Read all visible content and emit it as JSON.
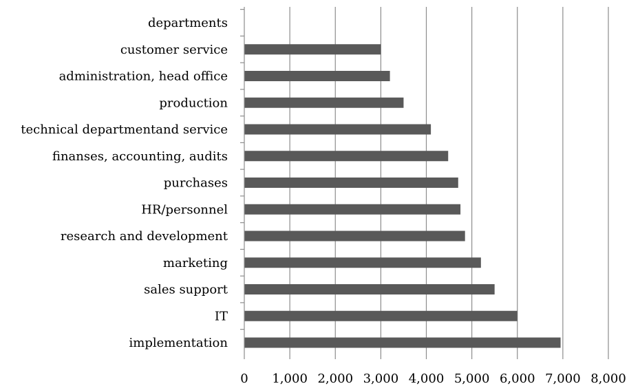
{
  "chart_data": {
    "type": "bar",
    "orientation": "horizontal",
    "categories": [
      "departments",
      "customer service",
      "administration, head office",
      "production",
      "technical departmentand service",
      "finanses, accounting, audits",
      "purchases",
      "HR/personnel",
      "research and development",
      "marketing",
      "sales support",
      "IT",
      "implementation"
    ],
    "values": [
      null,
      3000,
      3200,
      3500,
      4100,
      4480,
      4700,
      4750,
      4850,
      5200,
      5500,
      6000,
      6950
    ],
    "x_ticks": [
      "0",
      "1,000",
      "2,000",
      "3,000",
      "4,000",
      "5,000",
      "6,000",
      "7,000",
      "8,000"
    ],
    "xlim": [
      0,
      8000
    ],
    "grid": "vertical",
    "bar_color": "#595959",
    "gridline_color": "#8c8c8c",
    "title": "",
    "xlabel": "",
    "ylabel": ""
  }
}
